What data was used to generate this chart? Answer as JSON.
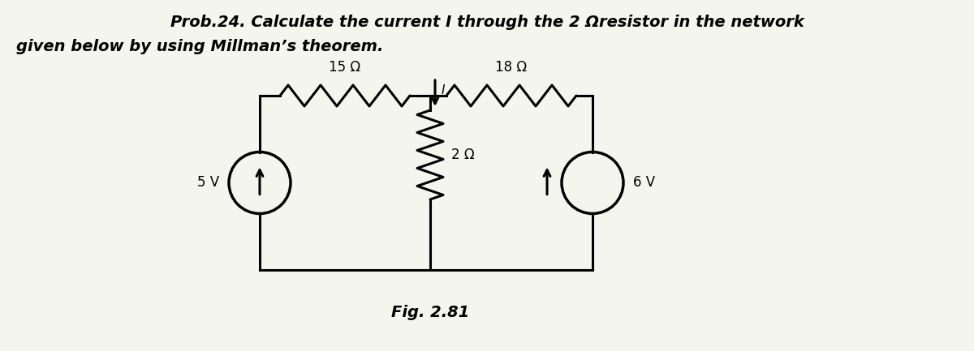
{
  "title_line1": "Prob.24. Calculate the current I through the 2 Ωresistor in the network",
  "title_line2": "given below by using Millman’s theorem.",
  "fig_label": "Fig. 2.81",
  "resistor_15_label": "15 Ω",
  "resistor_18_label": "18 Ω",
  "resistor_2_label": "2 Ω",
  "source_5_label": "5 V",
  "source_6_label": "6 V",
  "current_label": "I",
  "bg_color": "#f5f5f0",
  "line_color": "#000000",
  "lw": 2.2
}
